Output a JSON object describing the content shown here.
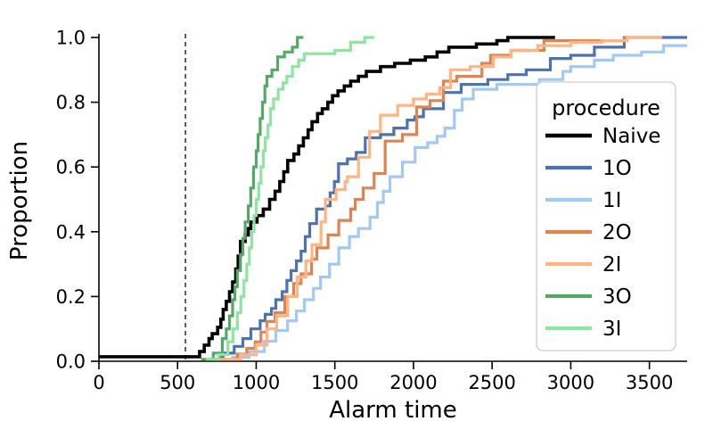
{
  "chart_data": {
    "type": "line",
    "subtype": "ecdf_step",
    "title": "",
    "xlabel": "Alarm time",
    "ylabel": "Proportion",
    "xlim": [
      0,
      3740
    ],
    "ylim": [
      0.0,
      1.0
    ],
    "xticks": {
      "values": [
        0,
        500,
        1000,
        1500,
        2000,
        2500,
        3000,
        3500
      ],
      "labels": [
        "0",
        "500",
        "1000",
        "1500",
        "2000",
        "2500",
        "3000",
        "3500"
      ]
    },
    "yticks": {
      "values": [
        0.0,
        0.2,
        0.4,
        0.6,
        0.8,
        1.0
      ],
      "labels": [
        "0.0",
        "0.2",
        "0.4",
        "0.6",
        "0.8",
        "1.0"
      ]
    },
    "grid": false,
    "vline": {
      "x": 550,
      "style": "dashed",
      "color": "#1a1a1a"
    },
    "legend": {
      "title": "procedure",
      "position": "lower right"
    },
    "series": [
      {
        "name": "Naive",
        "color": "#000000",
        "line_width": 3.6,
        "x_end": 2900,
        "points": [
          [
            0,
            0.014
          ],
          [
            640,
            0.03
          ],
          [
            670,
            0.05
          ],
          [
            700,
            0.07
          ],
          [
            720,
            0.085
          ],
          [
            755,
            0.105
          ],
          [
            775,
            0.13
          ],
          [
            790,
            0.16
          ],
          [
            810,
            0.185
          ],
          [
            830,
            0.215
          ],
          [
            850,
            0.245
          ],
          [
            870,
            0.285
          ],
          [
            885,
            0.325
          ],
          [
            900,
            0.37
          ],
          [
            930,
            0.39
          ],
          [
            950,
            0.41
          ],
          [
            965,
            0.43
          ],
          [
            1005,
            0.45
          ],
          [
            1045,
            0.47
          ],
          [
            1085,
            0.5
          ],
          [
            1120,
            0.525
          ],
          [
            1150,
            0.555
          ],
          [
            1175,
            0.585
          ],
          [
            1200,
            0.62
          ],
          [
            1240,
            0.64
          ],
          [
            1270,
            0.665
          ],
          [
            1300,
            0.69
          ],
          [
            1330,
            0.715
          ],
          [
            1355,
            0.74
          ],
          [
            1390,
            0.765
          ],
          [
            1420,
            0.78
          ],
          [
            1455,
            0.8
          ],
          [
            1485,
            0.82
          ],
          [
            1520,
            0.835
          ],
          [
            1560,
            0.85
          ],
          [
            1600,
            0.865
          ],
          [
            1650,
            0.88
          ],
          [
            1700,
            0.895
          ],
          [
            1790,
            0.91
          ],
          [
            1880,
            0.92
          ],
          [
            1980,
            0.93
          ],
          [
            2075,
            0.94
          ],
          [
            2150,
            0.955
          ],
          [
            2225,
            0.97
          ],
          [
            2400,
            0.98
          ],
          [
            2530,
            0.99
          ],
          [
            2600,
            1.0
          ]
        ]
      },
      {
        "name": "1O",
        "color": "#4C72B0",
        "line_width": 3.2,
        "x_end": 3740,
        "points": [
          [
            755,
            0.012
          ],
          [
            790,
            0.025
          ],
          [
            860,
            0.046
          ],
          [
            915,
            0.07
          ],
          [
            966,
            0.1
          ],
          [
            1025,
            0.125
          ],
          [
            1057,
            0.145
          ],
          [
            1097,
            0.163
          ],
          [
            1125,
            0.19
          ],
          [
            1165,
            0.215
          ],
          [
            1195,
            0.25
          ],
          [
            1222,
            0.28
          ],
          [
            1256,
            0.31
          ],
          [
            1285,
            0.34
          ],
          [
            1312,
            0.385
          ],
          [
            1340,
            0.425
          ],
          [
            1384,
            0.47
          ],
          [
            1440,
            0.48
          ],
          [
            1470,
            0.52
          ],
          [
            1497,
            0.555
          ],
          [
            1523,
            0.61
          ],
          [
            1580,
            0.625
          ],
          [
            1636,
            0.645
          ],
          [
            1693,
            0.69
          ],
          [
            1790,
            0.7
          ],
          [
            1875,
            0.72
          ],
          [
            1960,
            0.745
          ],
          [
            2008,
            0.755
          ],
          [
            2063,
            0.78
          ],
          [
            2190,
            0.83
          ],
          [
            2303,
            0.855
          ],
          [
            2473,
            0.87
          ],
          [
            2600,
            0.885
          ],
          [
            2717,
            0.9
          ],
          [
            2870,
            0.935
          ],
          [
            3000,
            0.945
          ],
          [
            3150,
            0.97
          ],
          [
            3340,
            1.0
          ]
        ]
      },
      {
        "name": "1I",
        "color": "#A1C9F4",
        "line_width": 3.2,
        "x_end": 3740,
        "points": [
          [
            841,
            0.012
          ],
          [
            955,
            0.03
          ],
          [
            1051,
            0.062
          ],
          [
            1125,
            0.095
          ],
          [
            1199,
            0.125
          ],
          [
            1256,
            0.155
          ],
          [
            1307,
            0.19
          ],
          [
            1364,
            0.225
          ],
          [
            1409,
            0.26
          ],
          [
            1466,
            0.3
          ],
          [
            1525,
            0.35
          ],
          [
            1593,
            0.385
          ],
          [
            1650,
            0.41
          ],
          [
            1724,
            0.445
          ],
          [
            1770,
            0.49
          ],
          [
            1808,
            0.525
          ],
          [
            1850,
            0.57
          ],
          [
            1930,
            0.615
          ],
          [
            2010,
            0.66
          ],
          [
            2090,
            0.675
          ],
          [
            2150,
            0.695
          ],
          [
            2200,
            0.72
          ],
          [
            2260,
            0.775
          ],
          [
            2310,
            0.81
          ],
          [
            2380,
            0.84
          ],
          [
            2530,
            0.855
          ],
          [
            2800,
            0.87
          ],
          [
            2950,
            0.895
          ],
          [
            3000,
            0.91
          ],
          [
            3150,
            0.93
          ],
          [
            3270,
            0.945
          ],
          [
            3450,
            0.955
          ],
          [
            3590,
            0.975
          ]
        ]
      },
      {
        "name": "2O",
        "color": "#DD8452",
        "line_width": 3.2,
        "x_end": 3360,
        "points": [
          [
            700,
            0.006
          ],
          [
            880,
            0.022
          ],
          [
            940,
            0.04
          ],
          [
            994,
            0.06
          ],
          [
            1030,
            0.09
          ],
          [
            1068,
            0.123
          ],
          [
            1120,
            0.15
          ],
          [
            1182,
            0.2
          ],
          [
            1238,
            0.24
          ],
          [
            1285,
            0.27
          ],
          [
            1352,
            0.315
          ],
          [
            1385,
            0.35
          ],
          [
            1457,
            0.39
          ],
          [
            1525,
            0.435
          ],
          [
            1600,
            0.47
          ],
          [
            1630,
            0.5
          ],
          [
            1680,
            0.535
          ],
          [
            1750,
            0.58
          ],
          [
            1820,
            0.68
          ],
          [
            1930,
            0.7
          ],
          [
            2020,
            0.785
          ],
          [
            2105,
            0.805
          ],
          [
            2190,
            0.865
          ],
          [
            2275,
            0.88
          ],
          [
            2435,
            0.92
          ],
          [
            2490,
            0.945
          ],
          [
            2620,
            0.96
          ],
          [
            2830,
            0.99
          ],
          [
            3340,
            1.0
          ]
        ]
      },
      {
        "name": "2I",
        "color": "#FFB482",
        "line_width": 3.2,
        "x_end": 3580,
        "points": [
          [
            730,
            0.006
          ],
          [
            900,
            0.02
          ],
          [
            1000,
            0.05
          ],
          [
            1068,
            0.1
          ],
          [
            1130,
            0.14
          ],
          [
            1200,
            0.2
          ],
          [
            1260,
            0.26
          ],
          [
            1316,
            0.31
          ],
          [
            1355,
            0.36
          ],
          [
            1412,
            0.43
          ],
          [
            1440,
            0.5
          ],
          [
            1508,
            0.53
          ],
          [
            1565,
            0.555
          ],
          [
            1580,
            0.57
          ],
          [
            1650,
            0.63
          ],
          [
            1721,
            0.71
          ],
          [
            1790,
            0.76
          ],
          [
            1900,
            0.79
          ],
          [
            2000,
            0.81
          ],
          [
            2082,
            0.825
          ],
          [
            2167,
            0.845
          ],
          [
            2235,
            0.9
          ],
          [
            2360,
            0.91
          ],
          [
            2507,
            0.94
          ],
          [
            2620,
            0.96
          ],
          [
            2790,
            0.975
          ],
          [
            3000,
            0.985
          ],
          [
            3200,
            0.99
          ],
          [
            3360,
            1.0
          ]
        ]
      },
      {
        "name": "3O",
        "color": "#55A868",
        "line_width": 3.2,
        "x_end": 1300,
        "points": [
          [
            650,
            0.006
          ],
          [
            727,
            0.025
          ],
          [
            784,
            0.07
          ],
          [
            810,
            0.1
          ],
          [
            830,
            0.14
          ],
          [
            850,
            0.19
          ],
          [
            865,
            0.23
          ],
          [
            880,
            0.28
          ],
          [
            900,
            0.33
          ],
          [
            915,
            0.38
          ],
          [
            930,
            0.43
          ],
          [
            950,
            0.48
          ],
          [
            965,
            0.535
          ],
          [
            983,
            0.6
          ],
          [
            1000,
            0.65
          ],
          [
            1012,
            0.7
          ],
          [
            1025,
            0.75
          ],
          [
            1040,
            0.8
          ],
          [
            1055,
            0.85
          ],
          [
            1068,
            0.88
          ],
          [
            1100,
            0.9
          ],
          [
            1136,
            0.94
          ],
          [
            1180,
            0.955
          ],
          [
            1230,
            0.97
          ],
          [
            1262,
            1.0
          ]
        ]
      },
      {
        "name": "3I",
        "color": "#8DE5A1",
        "line_width": 3.2,
        "x_end": 1750,
        "points": [
          [
            680,
            0.006
          ],
          [
            760,
            0.02
          ],
          [
            820,
            0.06
          ],
          [
            852,
            0.1
          ],
          [
            880,
            0.15
          ],
          [
            902,
            0.2
          ],
          [
            922,
            0.25
          ],
          [
            940,
            0.3
          ],
          [
            956,
            0.35
          ],
          [
            972,
            0.4
          ],
          [
            986,
            0.45
          ],
          [
            1000,
            0.5
          ],
          [
            1016,
            0.55
          ],
          [
            1030,
            0.6
          ],
          [
            1045,
            0.65
          ],
          [
            1058,
            0.69
          ],
          [
            1075,
            0.73
          ],
          [
            1090,
            0.78
          ],
          [
            1110,
            0.81
          ],
          [
            1140,
            0.84
          ],
          [
            1170,
            0.86
          ],
          [
            1195,
            0.88
          ],
          [
            1230,
            0.91
          ],
          [
            1270,
            0.93
          ],
          [
            1306,
            0.95
          ],
          [
            1500,
            0.96
          ],
          [
            1600,
            0.985
          ],
          [
            1690,
            1.0
          ]
        ]
      }
    ]
  }
}
